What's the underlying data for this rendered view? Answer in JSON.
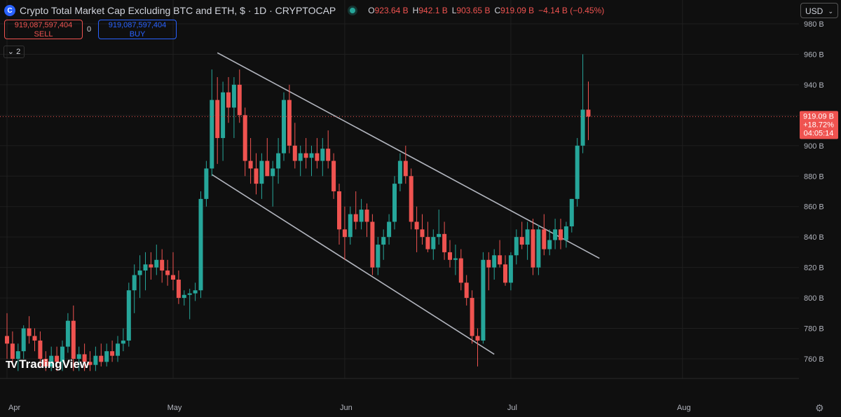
{
  "header": {
    "title": "Crypto Total Market Cap Excluding BTC and ETH, $ · 1D · CRYPTOCAP",
    "logo_icon": "cryptocap-logo-icon",
    "status_icon": "market-open-dot-icon",
    "ohlc": [
      {
        "k": "O",
        "v": "923.64 B"
      },
      {
        "k": "H",
        "v": "942.1 B"
      },
      {
        "k": "L",
        "v": "903.65 B"
      },
      {
        "k": "C",
        "v": "919.09 B"
      },
      {
        "k": "",
        "v": "−4.14 B (−0.45%)"
      }
    ]
  },
  "trade": {
    "sell_price": "919,087,597,404",
    "sell_label": "SELL",
    "buy_price": "919,087,597,404",
    "buy_label": "BUY",
    "spread": "0"
  },
  "indicators": {
    "collapse_label": "2",
    "collapse_icon": "chevron-down-icon"
  },
  "currency": {
    "selected": "USD",
    "icon": "chevron-down-icon"
  },
  "watermark": {
    "text": "TradingView",
    "icon": "tradingview-logo-icon"
  },
  "settings": {
    "icon": "gear-icon"
  },
  "colors": {
    "up": "#26a69a",
    "down": "#ef5350",
    "background": "#0f0f0f",
    "grid": "#1f1f1f",
    "trendline": "#b2b5be",
    "buy": "#2962ff"
  },
  "chart_data": {
    "type": "candlestick",
    "title": "Crypto Total Market Cap Excluding BTC and ETH, $ · 1D · CRYPTOCAP",
    "x_ticks": [
      "Apr",
      "May",
      "Jun",
      "Jul",
      "Aug"
    ],
    "y_ticks": [
      "760 B",
      "780 B",
      "800 B",
      "820 B",
      "840 B",
      "860 B",
      "880 B",
      "900 B",
      "920 B",
      "940 B",
      "960 B",
      "980 B"
    ],
    "y_tick_values": [
      760,
      780,
      800,
      820,
      840,
      860,
      880,
      900,
      920,
      940,
      960,
      980
    ],
    "ylim": [
      750,
      985
    ],
    "unit": "B USD",
    "grid": true,
    "current_price": {
      "price": 919.09,
      "label": "919.09 B",
      "change": "+18.72%",
      "countdown": "04:05:14"
    },
    "candles": [
      {
        "date": "Apr 1",
        "o": 775,
        "h": 790,
        "l": 760,
        "c": 770
      },
      {
        "date": "Apr 2",
        "o": 770,
        "h": 778,
        "l": 755,
        "c": 760
      },
      {
        "date": "Apr 3",
        "o": 760,
        "h": 770,
        "l": 752,
        "c": 765
      },
      {
        "date": "Apr 4",
        "o": 765,
        "h": 782,
        "l": 760,
        "c": 780
      },
      {
        "date": "Apr 5",
        "o": 780,
        "h": 788,
        "l": 770,
        "c": 775
      },
      {
        "date": "Apr 6",
        "o": 775,
        "h": 780,
        "l": 765,
        "c": 772
      },
      {
        "date": "Apr 7",
        "o": 772,
        "h": 778,
        "l": 755,
        "c": 760
      },
      {
        "date": "Apr 8",
        "o": 760,
        "h": 765,
        "l": 752,
        "c": 755
      },
      {
        "date": "Apr 9",
        "o": 755,
        "h": 768,
        "l": 752,
        "c": 762
      },
      {
        "date": "Apr 10",
        "o": 762,
        "h": 768,
        "l": 752,
        "c": 758
      },
      {
        "date": "Apr 11",
        "o": 758,
        "h": 772,
        "l": 752,
        "c": 768
      },
      {
        "date": "Apr 12",
        "o": 768,
        "h": 790,
        "l": 764,
        "c": 785
      },
      {
        "date": "Apr 13",
        "o": 785,
        "h": 795,
        "l": 752,
        "c": 760
      },
      {
        "date": "Apr 14",
        "o": 760,
        "h": 768,
        "l": 752,
        "c": 763
      },
      {
        "date": "Apr 15",
        "o": 763,
        "h": 770,
        "l": 752,
        "c": 758
      },
      {
        "date": "Apr 16",
        "o": 758,
        "h": 765,
        "l": 752,
        "c": 756
      },
      {
        "date": "Apr 17",
        "o": 756,
        "h": 768,
        "l": 752,
        "c": 762
      },
      {
        "date": "Apr 18",
        "o": 762,
        "h": 770,
        "l": 755,
        "c": 758
      },
      {
        "date": "Apr 19",
        "o": 758,
        "h": 770,
        "l": 755,
        "c": 765
      },
      {
        "date": "Apr 20",
        "o": 765,
        "h": 772,
        "l": 758,
        "c": 762
      },
      {
        "date": "Apr 21",
        "o": 762,
        "h": 775,
        "l": 758,
        "c": 770
      },
      {
        "date": "Apr 22",
        "o": 770,
        "h": 780,
        "l": 765,
        "c": 772
      },
      {
        "date": "Apr 23",
        "o": 772,
        "h": 810,
        "l": 768,
        "c": 805
      },
      {
        "date": "Apr 24",
        "o": 805,
        "h": 822,
        "l": 790,
        "c": 815
      },
      {
        "date": "Apr 25",
        "o": 815,
        "h": 828,
        "l": 800,
        "c": 818
      },
      {
        "date": "Apr 26",
        "o": 818,
        "h": 830,
        "l": 805,
        "c": 822
      },
      {
        "date": "Apr 27",
        "o": 822,
        "h": 830,
        "l": 812,
        "c": 820
      },
      {
        "date": "Apr 28",
        "o": 820,
        "h": 835,
        "l": 815,
        "c": 825
      },
      {
        "date": "Apr 29",
        "o": 825,
        "h": 832,
        "l": 810,
        "c": 818
      },
      {
        "date": "Apr 30",
        "o": 818,
        "h": 825,
        "l": 808,
        "c": 815
      },
      {
        "date": "May 1",
        "o": 815,
        "h": 830,
        "l": 805,
        "c": 812
      },
      {
        "date": "May 2",
        "o": 812,
        "h": 818,
        "l": 796,
        "c": 800
      },
      {
        "date": "May 3",
        "o": 800,
        "h": 805,
        "l": 795,
        "c": 802
      },
      {
        "date": "May 4",
        "o": 802,
        "h": 806,
        "l": 786,
        "c": 803
      },
      {
        "date": "May 5",
        "o": 803,
        "h": 810,
        "l": 798,
        "c": 805
      },
      {
        "date": "May 6",
        "o": 805,
        "h": 870,
        "l": 800,
        "c": 865
      },
      {
        "date": "May 7",
        "o": 865,
        "h": 890,
        "l": 860,
        "c": 885
      },
      {
        "date": "May 8",
        "o": 885,
        "h": 950,
        "l": 880,
        "c": 930
      },
      {
        "date": "May 9",
        "o": 930,
        "h": 945,
        "l": 888,
        "c": 905
      },
      {
        "date": "May 10",
        "o": 905,
        "h": 942,
        "l": 890,
        "c": 935
      },
      {
        "date": "May 11",
        "o": 935,
        "h": 945,
        "l": 915,
        "c": 925
      },
      {
        "date": "May 12",
        "o": 925,
        "h": 945,
        "l": 905,
        "c": 940
      },
      {
        "date": "May 13",
        "o": 940,
        "h": 950,
        "l": 915,
        "c": 920
      },
      {
        "date": "May 14",
        "o": 920,
        "h": 925,
        "l": 880,
        "c": 890
      },
      {
        "date": "May 15",
        "o": 890,
        "h": 905,
        "l": 875,
        "c": 885
      },
      {
        "date": "May 16",
        "o": 885,
        "h": 895,
        "l": 868,
        "c": 875
      },
      {
        "date": "May 17",
        "o": 875,
        "h": 895,
        "l": 865,
        "c": 890
      },
      {
        "date": "May 18",
        "o": 890,
        "h": 905,
        "l": 880,
        "c": 880
      },
      {
        "date": "May 19",
        "o": 880,
        "h": 890,
        "l": 860,
        "c": 885
      },
      {
        "date": "May 20",
        "o": 885,
        "h": 905,
        "l": 875,
        "c": 895
      },
      {
        "date": "May 21",
        "o": 895,
        "h": 935,
        "l": 890,
        "c": 930
      },
      {
        "date": "May 22",
        "o": 930,
        "h": 940,
        "l": 895,
        "c": 900
      },
      {
        "date": "May 23",
        "o": 900,
        "h": 915,
        "l": 885,
        "c": 890
      },
      {
        "date": "May 24",
        "o": 890,
        "h": 900,
        "l": 880,
        "c": 895
      },
      {
        "date": "May 25",
        "o": 895,
        "h": 905,
        "l": 885,
        "c": 892
      },
      {
        "date": "May 26",
        "o": 892,
        "h": 900,
        "l": 880,
        "c": 895
      },
      {
        "date": "May 27",
        "o": 895,
        "h": 905,
        "l": 885,
        "c": 890
      },
      {
        "date": "May 28",
        "o": 890,
        "h": 905,
        "l": 880,
        "c": 898
      },
      {
        "date": "May 29",
        "o": 898,
        "h": 910,
        "l": 885,
        "c": 890
      },
      {
        "date": "May 30",
        "o": 890,
        "h": 895,
        "l": 865,
        "c": 870
      },
      {
        "date": "May 31",
        "o": 870,
        "h": 875,
        "l": 835,
        "c": 845
      },
      {
        "date": "Jun 1",
        "o": 845,
        "h": 860,
        "l": 825,
        "c": 840
      },
      {
        "date": "Jun 2",
        "o": 840,
        "h": 860,
        "l": 835,
        "c": 855
      },
      {
        "date": "Jun 3",
        "o": 855,
        "h": 870,
        "l": 845,
        "c": 850
      },
      {
        "date": "Jun 4",
        "o": 850,
        "h": 865,
        "l": 845,
        "c": 858
      },
      {
        "date": "Jun 5",
        "o": 858,
        "h": 862,
        "l": 840,
        "c": 850
      },
      {
        "date": "Jun 6",
        "o": 850,
        "h": 855,
        "l": 815,
        "c": 820
      },
      {
        "date": "Jun 7",
        "o": 820,
        "h": 840,
        "l": 815,
        "c": 835
      },
      {
        "date": "Jun 8",
        "o": 835,
        "h": 845,
        "l": 825,
        "c": 840
      },
      {
        "date": "Jun 9",
        "o": 840,
        "h": 855,
        "l": 835,
        "c": 850
      },
      {
        "date": "Jun 10",
        "o": 850,
        "h": 880,
        "l": 845,
        "c": 875
      },
      {
        "date": "Jun 11",
        "o": 875,
        "h": 895,
        "l": 870,
        "c": 890
      },
      {
        "date": "Jun 12",
        "o": 890,
        "h": 900,
        "l": 875,
        "c": 880
      },
      {
        "date": "Jun 13",
        "o": 880,
        "h": 885,
        "l": 845,
        "c": 850
      },
      {
        "date": "Jun 14",
        "o": 850,
        "h": 860,
        "l": 830,
        "c": 845
      },
      {
        "date": "Jun 15",
        "o": 845,
        "h": 855,
        "l": 835,
        "c": 840
      },
      {
        "date": "Jun 16",
        "o": 840,
        "h": 850,
        "l": 830,
        "c": 832
      },
      {
        "date": "Jun 17",
        "o": 832,
        "h": 845,
        "l": 825,
        "c": 840
      },
      {
        "date": "Jun 18",
        "o": 840,
        "h": 858,
        "l": 835,
        "c": 842
      },
      {
        "date": "Jun 19",
        "o": 842,
        "h": 850,
        "l": 825,
        "c": 830
      },
      {
        "date": "Jun 20",
        "o": 830,
        "h": 838,
        "l": 820,
        "c": 825
      },
      {
        "date": "Jun 21",
        "o": 825,
        "h": 835,
        "l": 815,
        "c": 826
      },
      {
        "date": "Jun 22",
        "o": 826,
        "h": 832,
        "l": 805,
        "c": 810
      },
      {
        "date": "Jun 23",
        "o": 810,
        "h": 815,
        "l": 795,
        "c": 800
      },
      {
        "date": "Jun 24",
        "o": 800,
        "h": 805,
        "l": 770,
        "c": 775
      },
      {
        "date": "Jun 25",
        "o": 775,
        "h": 780,
        "l": 755,
        "c": 772
      },
      {
        "date": "Jun 26",
        "o": 772,
        "h": 830,
        "l": 770,
        "c": 825
      },
      {
        "date": "Jun 27",
        "o": 825,
        "h": 830,
        "l": 805,
        "c": 820
      },
      {
        "date": "Jun 28",
        "o": 820,
        "h": 832,
        "l": 812,
        "c": 828
      },
      {
        "date": "Jun 29",
        "o": 828,
        "h": 838,
        "l": 820,
        "c": 822
      },
      {
        "date": "Jun 30",
        "o": 822,
        "h": 828,
        "l": 808,
        "c": 810
      },
      {
        "date": "Jul 1",
        "o": 810,
        "h": 830,
        "l": 805,
        "c": 828
      },
      {
        "date": "Jul 2",
        "o": 828,
        "h": 845,
        "l": 822,
        "c": 840
      },
      {
        "date": "Jul 3",
        "o": 840,
        "h": 850,
        "l": 832,
        "c": 835
      },
      {
        "date": "Jul 4",
        "o": 835,
        "h": 850,
        "l": 825,
        "c": 845
      },
      {
        "date": "Jul 5",
        "o": 845,
        "h": 852,
        "l": 815,
        "c": 820
      },
      {
        "date": "Jul 6",
        "o": 820,
        "h": 848,
        "l": 815,
        "c": 845
      },
      {
        "date": "Jul 7",
        "o": 845,
        "h": 855,
        "l": 828,
        "c": 832
      },
      {
        "date": "Jul 8",
        "o": 832,
        "h": 845,
        "l": 828,
        "c": 838
      },
      {
        "date": "Jul 9",
        "o": 838,
        "h": 852,
        "l": 832,
        "c": 845
      },
      {
        "date": "Jul 10",
        "o": 845,
        "h": 852,
        "l": 832,
        "c": 838
      },
      {
        "date": "Jul 11",
        "o": 838,
        "h": 850,
        "l": 833,
        "c": 847
      },
      {
        "date": "Jul 12",
        "o": 847,
        "h": 865,
        "l": 843,
        "c": 865
      },
      {
        "date": "Jul 13",
        "o": 865,
        "h": 905,
        "l": 860,
        "c": 900
      },
      {
        "date": "Jul 14",
        "o": 900,
        "h": 960,
        "l": 895,
        "c": 923.64
      },
      {
        "date": "Jul 15",
        "o": 923.64,
        "h": 942.1,
        "l": 903.65,
        "c": 919.09
      }
    ],
    "trendlines": [
      {
        "name": "",
        "points": [
          {
            "date": "May 9",
            "value": 961
          },
          {
            "date": "Jul 17",
            "value": 826
          }
        ]
      },
      {
        "name": "",
        "points": [
          {
            "date": "May 8",
            "value": 881
          },
          {
            "date": "Jun 28",
            "value": 763
          }
        ]
      }
    ]
  }
}
